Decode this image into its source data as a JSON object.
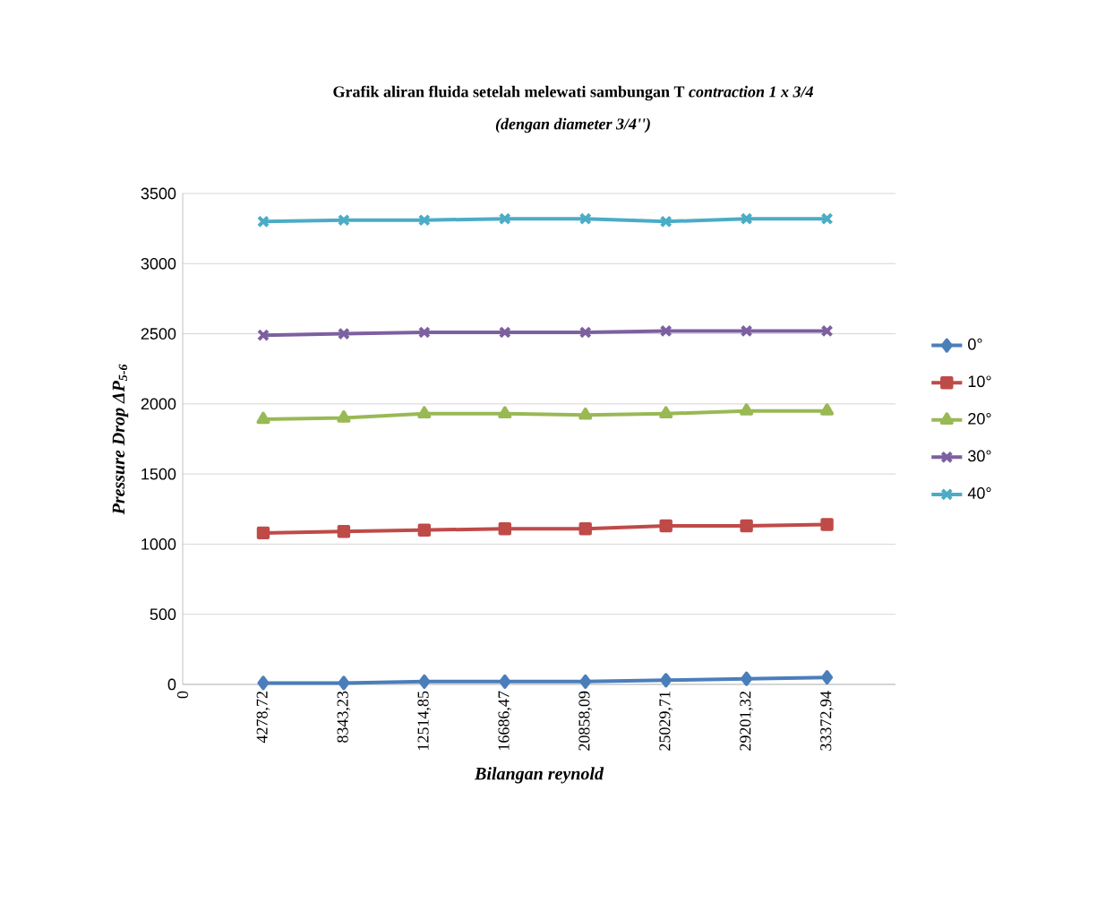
{
  "chart_data": {
    "type": "line",
    "title": "Grafik aliran fluida setelah melewati sambungan T *contraction 1 x 3/4*",
    "subtitle": "(dengan diameter  3/4'')",
    "xlabel": "Bilangan reynold",
    "ylabel": "Pressure Drop ΔP$_{5-6}$",
    "categories": [
      "0",
      "4278,72",
      "8343,23",
      "12514,85",
      "16686,47",
      "20858,09",
      "25029,71",
      "29201,32",
      "33372,94"
    ],
    "series": [
      {
        "name": "0°",
        "color": "#4a7ebb",
        "marker": "diamond",
        "values": [
          null,
          10,
          10,
          20,
          20,
          20,
          30,
          40,
          50
        ]
      },
      {
        "name": "10°",
        "color": "#be4b48",
        "marker": "square",
        "values": [
          null,
          1080,
          1090,
          1100,
          1110,
          1110,
          1130,
          1130,
          1140
        ]
      },
      {
        "name": "20°",
        "color": "#98b954",
        "marker": "triangle",
        "values": [
          null,
          1890,
          1900,
          1930,
          1930,
          1920,
          1930,
          1950,
          1950
        ]
      },
      {
        "name": "30°",
        "color": "#7d60a0",
        "marker": "cross",
        "values": [
          null,
          2490,
          2500,
          2510,
          2510,
          2510,
          2520,
          2520,
          2520
        ]
      },
      {
        "name": "40°",
        "color": "#4bacc6",
        "marker": "cross",
        "values": [
          null,
          3300,
          3310,
          3310,
          3320,
          3320,
          3300,
          3320,
          3320
        ]
      }
    ],
    "ylim": [
      0,
      3500
    ],
    "yticks": [
      0,
      500,
      1000,
      1500,
      2000,
      2500,
      3000,
      3500
    ],
    "grid": "y",
    "legend": "right"
  }
}
